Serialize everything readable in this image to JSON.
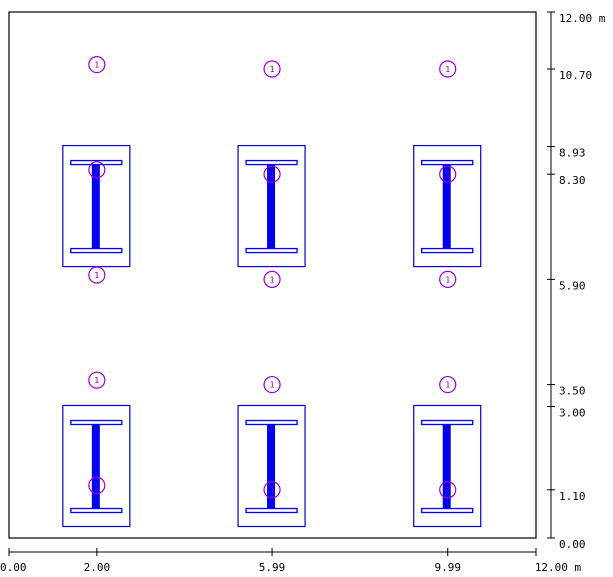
{
  "x_axis": {
    "ticks": [
      {
        "value": 0.0,
        "label": "0.00"
      },
      {
        "value": 2.0,
        "label": "2.00"
      },
      {
        "value": 5.99,
        "label": "5.99"
      },
      {
        "value": 9.99,
        "label": "9.99"
      },
      {
        "value": 12.0,
        "label": "12.00 m"
      }
    ]
  },
  "y_axis": {
    "ticks": [
      {
        "value": 0.0,
        "label": "0.00"
      },
      {
        "value": 1.1,
        "label": "1.10"
      },
      {
        "value": 3.0,
        "label": "3.00"
      },
      {
        "value": 3.5,
        "label": "3.50"
      },
      {
        "value": 5.9,
        "label": "5.90"
      },
      {
        "value": 8.3,
        "label": "8.30"
      },
      {
        "value": 8.93,
        "label": "8.93"
      },
      {
        "value": 10.7,
        "label": "10.70"
      },
      {
        "value": 12.0,
        "label": "12.00 m"
      }
    ]
  },
  "colors": {
    "frame": "#000000",
    "footing": "#0000cc",
    "column": "#0000ee",
    "marker": "#9900cc"
  },
  "marker_label": "1",
  "footings": [
    {
      "x": 2.0,
      "y": 8.93
    },
    {
      "x": 5.99,
      "y": 8.93
    },
    {
      "x": 9.99,
      "y": 8.93
    },
    {
      "x": 2.0,
      "y": 3.0
    },
    {
      "x": 5.99,
      "y": 3.0
    },
    {
      "x": 9.99,
      "y": 3.0
    }
  ],
  "markers": [
    {
      "x": 2.0,
      "y": 10.8
    },
    {
      "x": 5.99,
      "y": 10.7
    },
    {
      "x": 9.99,
      "y": 10.7
    },
    {
      "x": 2.0,
      "y": 8.4
    },
    {
      "x": 5.99,
      "y": 8.3
    },
    {
      "x": 9.99,
      "y": 8.3
    },
    {
      "x": 2.0,
      "y": 6.0
    },
    {
      "x": 5.99,
      "y": 5.9
    },
    {
      "x": 9.99,
      "y": 5.9
    },
    {
      "x": 2.0,
      "y": 3.6
    },
    {
      "x": 5.99,
      "y": 3.5
    },
    {
      "x": 9.99,
      "y": 3.5
    },
    {
      "x": 2.0,
      "y": 1.2
    },
    {
      "x": 5.99,
      "y": 1.1
    },
    {
      "x": 9.99,
      "y": 1.1
    }
  ]
}
